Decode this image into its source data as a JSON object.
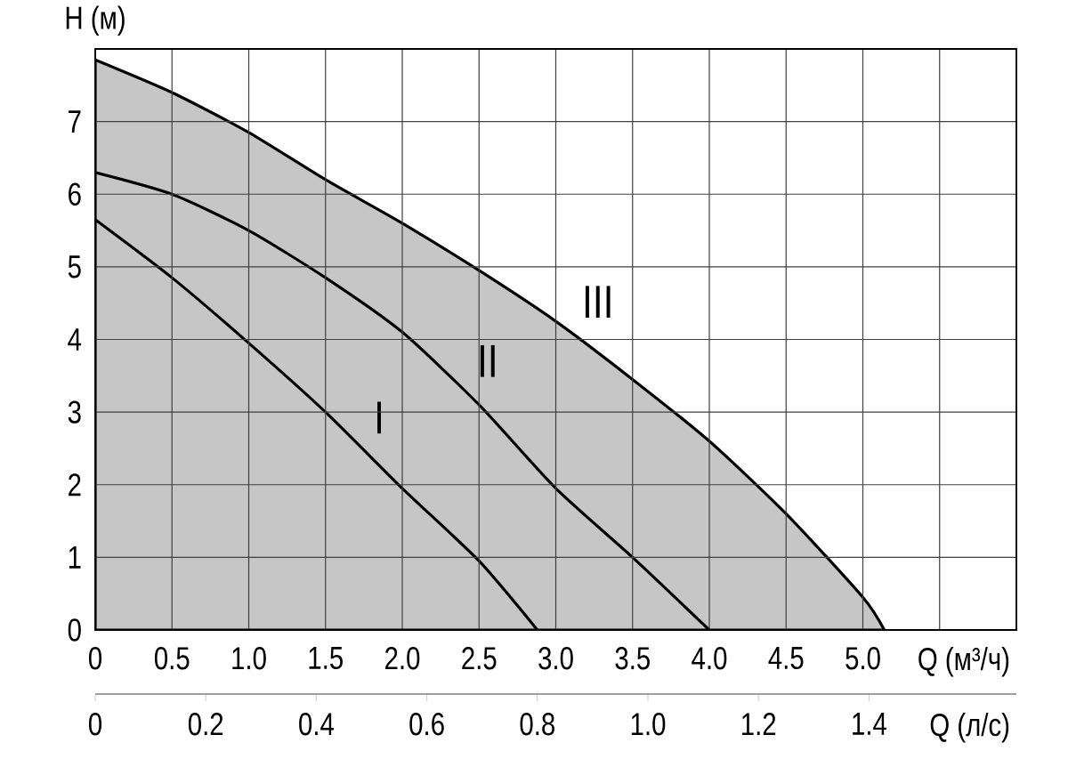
{
  "chart_data": {
    "type": "line",
    "xlabel": "Q (м³/ч)",
    "ylabel": "H (м)",
    "x2label": "Q (л/с)",
    "xlim": [
      0,
      6
    ],
    "ylim": [
      0,
      8
    ],
    "x2lim": [
      0,
      1.6667
    ],
    "xticks": [
      0,
      0.5,
      {
        "value": 1,
        "label": "1.0"
      },
      1.5,
      {
        "value": 2,
        "label": "2.0"
      },
      2.5,
      {
        "value": 3,
        "label": "3.0"
      },
      3.5,
      {
        "value": 4,
        "label": "4.0"
      },
      4.5,
      {
        "value": 5,
        "label": "5.0"
      },
      {
        "value": 5.5,
        "label": null
      },
      {
        "value": 6,
        "label": null
      }
    ],
    "yticks": [
      0,
      1,
      2,
      3,
      4,
      5,
      6,
      7
    ],
    "x2ticks": [
      0,
      0.2,
      0.4,
      0.6,
      0.8,
      {
        "value": 1,
        "label": "1.0"
      },
      1.2,
      1.4
    ],
    "grid": true,
    "series": [
      {
        "name": "III",
        "type": "area",
        "color": "#c6c6c6",
        "x": [
          0,
          0.5,
          1.0,
          1.5,
          2.0,
          2.5,
          3.0,
          3.5,
          4.0,
          4.5,
          5.0,
          5.14
        ],
        "values": [
          7.85,
          7.4,
          6.85,
          6.2,
          5.6,
          4.95,
          4.25,
          3.45,
          2.6,
          1.6,
          0.45,
          0
        ]
      },
      {
        "name": "II",
        "color": "#000000",
        "x": [
          0,
          0.5,
          1.0,
          1.5,
          2.0,
          2.5,
          3.0,
          3.5,
          4.0
        ],
        "values": [
          6.3,
          6.0,
          5.5,
          4.85,
          4.1,
          3.1,
          1.95,
          1.0,
          0
        ]
      },
      {
        "name": "I",
        "color": "#000000",
        "x": [
          0,
          0.5,
          1.0,
          1.5,
          2.0,
          2.5,
          2.88
        ],
        "values": [
          5.65,
          4.85,
          3.95,
          3.0,
          1.95,
          0.95,
          0
        ]
      }
    ]
  }
}
